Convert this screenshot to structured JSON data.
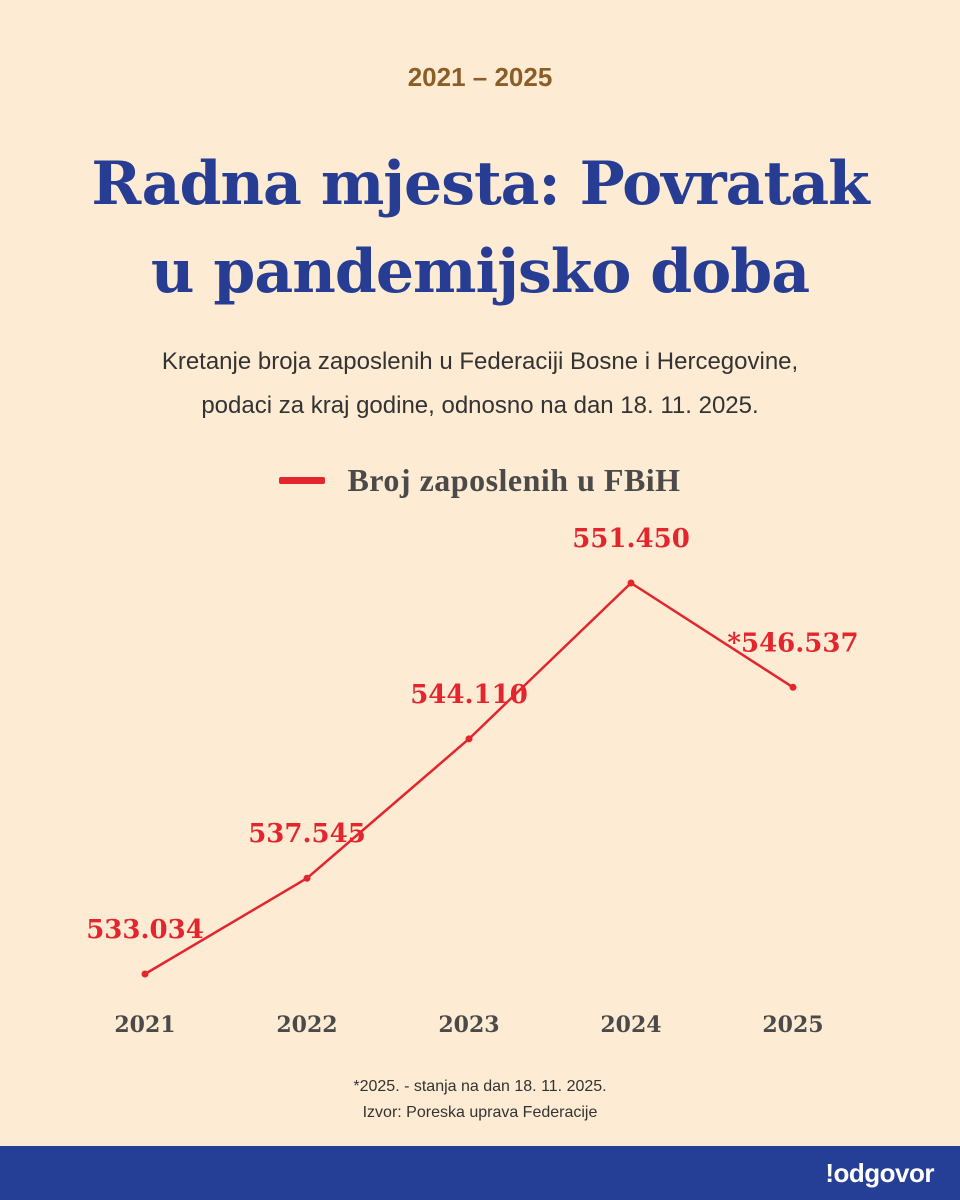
{
  "header": {
    "period": "2021 – 2025",
    "title_line1": "Radna mjesta: Povratak",
    "title_line2": "u pandemijsko doba",
    "subtitle_line1": "Kretanje broja zaposlenih u Federaciji Bosne i Hercegovine,",
    "subtitle_line2": "podaci za kraj godine, odnosno na dan 18. 11. 2025."
  },
  "footer": {
    "note": "*2025. - stanja na dan 18. 11. 2025.",
    "source": "Izvor: Poreska uprava Federacije",
    "logo": "!odgovor"
  },
  "colors": {
    "background": "#fdebd3",
    "title": "#263d93",
    "period": "#8c5e26",
    "line": "#e3262e",
    "footer_bar": "#253f96"
  },
  "chart_data": {
    "type": "line",
    "categories": [
      "2021",
      "2022",
      "2023",
      "2024",
      "2025"
    ],
    "series": [
      {
        "name": "Broj zaposlenih u FBiH",
        "values": [
          533034,
          537545,
          544110,
          551450,
          546537
        ],
        "labels": [
          "533.034",
          "537.545",
          "544.110",
          "551.450",
          "*546.537"
        ]
      }
    ],
    "title": "Radna mjesta: Povratak u pandemijsko doba",
    "xlabel": "",
    "ylabel": "",
    "ylim": [
      533034,
      551450
    ],
    "grid": false,
    "legend": "top-center"
  }
}
